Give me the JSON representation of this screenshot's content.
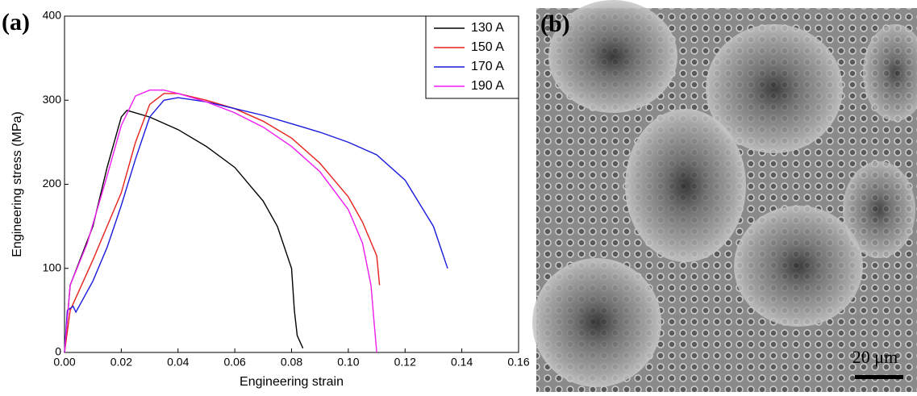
{
  "chart_data": {
    "type": "line",
    "panel_label": "(a)",
    "x_label": "Engineering strain",
    "y_label": "Engineering stress (MPa)",
    "xlim": [
      0,
      0.16
    ],
    "xticks": [
      {
        "value": 0,
        "label": "0.00"
      },
      {
        "value": 0.02,
        "label": "0.02"
      },
      {
        "value": 0.04,
        "label": "0.04"
      },
      {
        "value": 0.06,
        "label": "0.06"
      },
      {
        "value": 0.08,
        "label": "0.08"
      },
      {
        "value": 0.1,
        "label": "0.10"
      },
      {
        "value": 0.12,
        "label": "0.12"
      },
      {
        "value": 0.14,
        "label": "0.14"
      },
      {
        "value": 0.16,
        "label": "0.16"
      }
    ],
    "ylim": [
      0,
      400
    ],
    "yticks": [
      0,
      100,
      200,
      300,
      400
    ],
    "legend": "top-right",
    "series": [
      {
        "name": "130 A",
        "color": "#000000",
        "x": [
          0,
          0.002,
          0.01,
          0.015,
          0.02,
          0.022,
          0.03,
          0.04,
          0.05,
          0.06,
          0.07,
          0.075,
          0.08,
          0.081,
          0.082,
          0.084
        ],
        "values": [
          0,
          80,
          150,
          220,
          280,
          288,
          280,
          265,
          245,
          220,
          180,
          150,
          100,
          50,
          20,
          5
        ]
      },
      {
        "name": "150 A",
        "color": "#e8211b",
        "x": [
          0,
          0.002,
          0.01,
          0.02,
          0.025,
          0.03,
          0.035,
          0.04,
          0.05,
          0.06,
          0.07,
          0.08,
          0.09,
          0.1,
          0.105,
          0.11,
          0.111
        ],
        "values": [
          0,
          50,
          110,
          190,
          250,
          295,
          308,
          308,
          300,
          290,
          275,
          255,
          225,
          185,
          155,
          115,
          80
        ]
      },
      {
        "name": "170 A",
        "color": "#1a1adc",
        "x": [
          0,
          0.001,
          0.003,
          0.004,
          0.01,
          0.015,
          0.02,
          0.025,
          0.03,
          0.035,
          0.04,
          0.05,
          0.06,
          0.07,
          0.08,
          0.09,
          0.1,
          0.11,
          0.12,
          0.13,
          0.135
        ],
        "values": [
          0,
          50,
          55,
          48,
          85,
          125,
          175,
          230,
          280,
          300,
          303,
          298,
          290,
          282,
          272,
          262,
          250,
          235,
          205,
          150,
          100
        ]
      },
      {
        "name": "190 A",
        "color": "#f01cf0",
        "x": [
          0,
          0.002,
          0.008,
          0.015,
          0.02,
          0.025,
          0.03,
          0.035,
          0.04,
          0.05,
          0.06,
          0.07,
          0.08,
          0.09,
          0.1,
          0.105,
          0.108,
          0.109,
          0.11
        ],
        "values": [
          0,
          80,
          130,
          210,
          270,
          305,
          312,
          312,
          308,
          298,
          285,
          268,
          245,
          215,
          170,
          130,
          80,
          40,
          0
        ]
      }
    ]
  },
  "image": {
    "panel_label": "(b)",
    "scale_bar": "20 μm"
  }
}
